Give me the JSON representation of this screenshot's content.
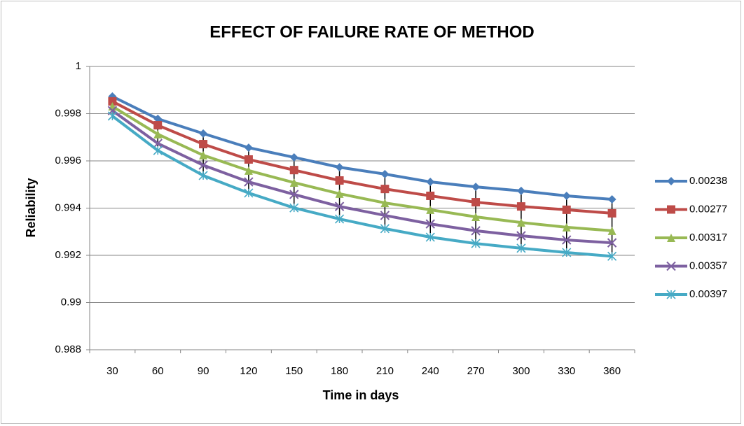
{
  "chart_data": {
    "type": "line",
    "title": "EFFECT OF FAILURE RATE OF METHOD",
    "x_label": "Time in days",
    "y_label": "Reliability",
    "categories": [
      30,
      60,
      90,
      120,
      150,
      180,
      210,
      240,
      270,
      300,
      330,
      360
    ],
    "series": [
      {
        "name": "0.00238",
        "color": "#4a7ebb",
        "marker": "diamond",
        "values": [
          0.99873,
          0.99778,
          0.99716,
          0.99656,
          0.99615,
          0.99573,
          0.99544,
          0.99511,
          0.9949,
          0.99473,
          0.99452,
          0.99437
        ]
      },
      {
        "name": "0.00277",
        "color": "#be4b48",
        "marker": "square",
        "values": [
          0.99852,
          0.99751,
          0.99671,
          0.99606,
          0.99561,
          0.99517,
          0.99481,
          0.99452,
          0.99425,
          0.99407,
          0.99393,
          0.99378
        ]
      },
      {
        "name": "0.00317",
        "color": "#98b954",
        "marker": "triangle",
        "values": [
          0.99831,
          0.99713,
          0.99624,
          0.99559,
          0.99508,
          0.99461,
          0.99422,
          0.99393,
          0.99363,
          0.99339,
          0.99319,
          0.99304
        ]
      },
      {
        "name": "0.00357",
        "color": "#7d60a0",
        "marker": "x",
        "values": [
          0.99813,
          0.99674,
          0.99582,
          0.99511,
          0.99458,
          0.99407,
          0.99369,
          0.99333,
          0.99304,
          0.99283,
          0.99265,
          0.99253
        ]
      },
      {
        "name": "0.00397",
        "color": "#46aac5",
        "marker": "star",
        "values": [
          0.9979,
          0.99644,
          0.99538,
          0.99464,
          0.99401,
          0.99354,
          0.99313,
          0.99277,
          0.9925,
          0.9923,
          0.99212,
          0.99196
        ]
      }
    ],
    "ylim": [
      0.988,
      1
    ],
    "yticks": [
      0.988,
      0.99,
      0.992,
      0.994,
      0.996,
      0.998,
      1
    ],
    "grid": true,
    "high_low_lines": true,
    "legend": "right"
  }
}
